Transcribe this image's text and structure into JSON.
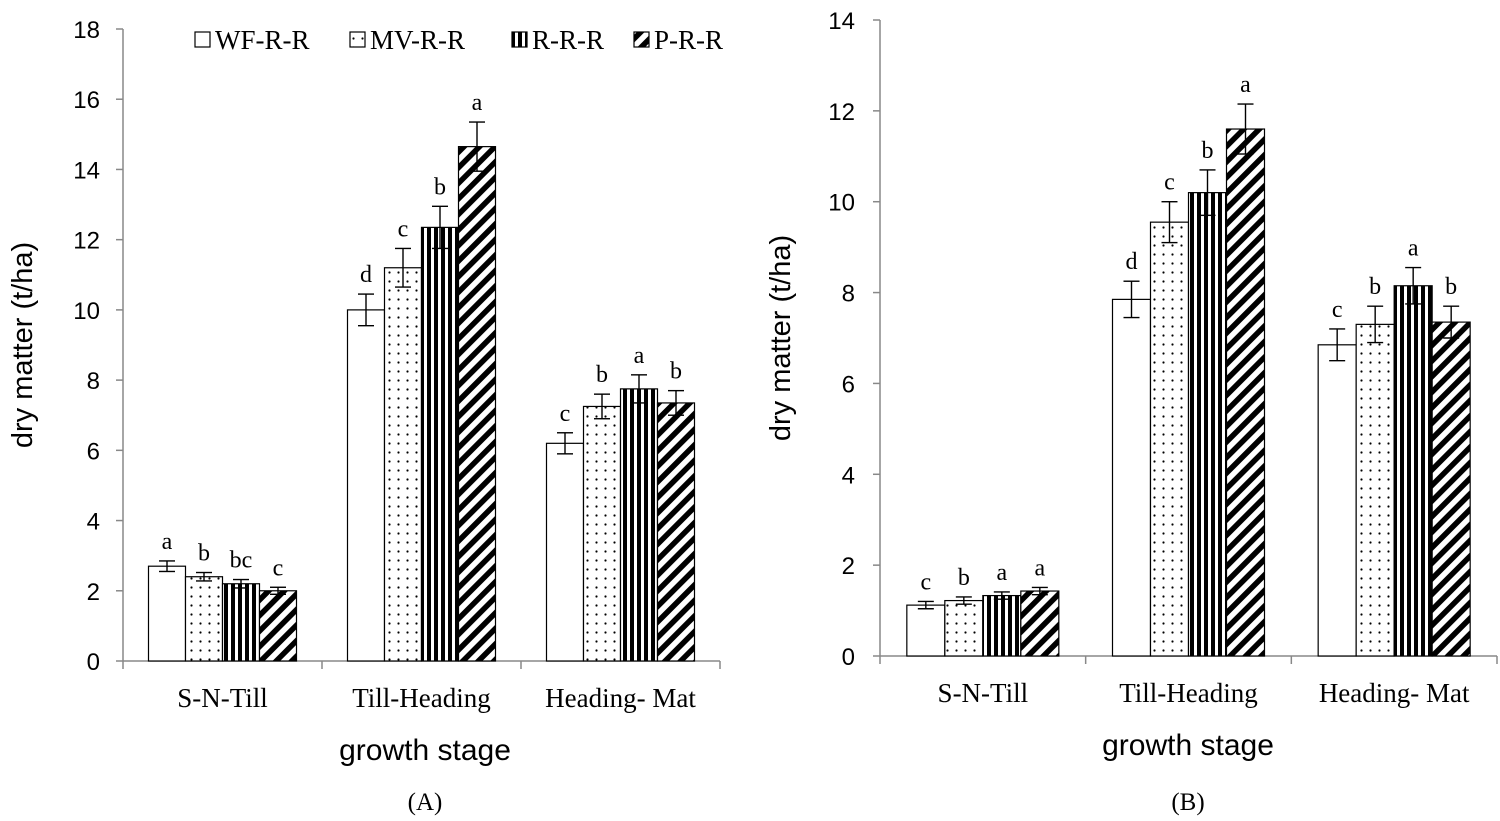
{
  "chart_data": [
    {
      "type": "bar",
      "panel_label": "(A)",
      "categories": [
        "S-N-Till",
        "Till-Heading",
        "Heading- Mat"
      ],
      "xlabel": "growth stage",
      "ylabel": "dry matter (t/ha)",
      "ylim": [
        0,
        18
      ],
      "yticks": [
        0,
        2,
        4,
        6,
        8,
        10,
        12,
        14,
        16,
        18
      ],
      "legend": {
        "position": "top",
        "entries": [
          "WF-R-R",
          "MV-R-R",
          "R-R-R",
          "P-R-R"
        ]
      },
      "series": [
        {
          "name": "WF-R-R",
          "pattern": "open",
          "values": [
            2.7,
            10.0,
            6.2
          ],
          "errors": [
            0.15,
            0.45,
            0.3
          ],
          "letters": [
            "a",
            "d",
            "c"
          ]
        },
        {
          "name": "MV-R-R",
          "pattern": "dotted",
          "values": [
            2.4,
            11.2,
            7.25
          ],
          "errors": [
            0.12,
            0.55,
            0.35
          ],
          "letters": [
            "b",
            "c",
            "b"
          ]
        },
        {
          "name": "R-R-R",
          "pattern": "vertical-stripes",
          "values": [
            2.2,
            12.35,
            7.75
          ],
          "errors": [
            0.12,
            0.6,
            0.4
          ],
          "letters": [
            "bc",
            "b",
            "a"
          ]
        },
        {
          "name": "P-R-R",
          "pattern": "diagonal-stripes",
          "values": [
            2.0,
            14.65,
            7.35
          ],
          "errors": [
            0.1,
            0.7,
            0.35
          ],
          "letters": [
            "c",
            "a",
            "b"
          ]
        }
      ]
    },
    {
      "type": "bar",
      "panel_label": "(B)",
      "categories": [
        "S-N-Till",
        "Till-Heading",
        "Heading- Mat"
      ],
      "xlabel": "growth stage",
      "ylabel": "dry matter (t/ha)",
      "ylim": [
        0,
        14
      ],
      "yticks": [
        0,
        2,
        4,
        6,
        8,
        10,
        12,
        14
      ],
      "series": [
        {
          "name": "WF-R-R",
          "pattern": "open",
          "values": [
            1.12,
            7.85,
            6.85
          ],
          "errors": [
            0.08,
            0.4,
            0.35
          ],
          "letters": [
            "c",
            "d",
            "c"
          ]
        },
        {
          "name": "MV-R-R",
          "pattern": "dotted",
          "values": [
            1.22,
            9.55,
            7.3
          ],
          "errors": [
            0.08,
            0.45,
            0.4
          ],
          "letters": [
            "b",
            "c",
            "b"
          ]
        },
        {
          "name": "R-R-R",
          "pattern": "vertical-stripes",
          "values": [
            1.33,
            10.2,
            8.15
          ],
          "errors": [
            0.08,
            0.5,
            0.4
          ],
          "letters": [
            "a",
            "b",
            "a"
          ]
        },
        {
          "name": "P-R-R",
          "pattern": "diagonal-stripes",
          "values": [
            1.43,
            11.6,
            7.35
          ],
          "errors": [
            0.08,
            0.55,
            0.35
          ],
          "letters": [
            "a",
            "a",
            "b"
          ]
        }
      ]
    }
  ]
}
